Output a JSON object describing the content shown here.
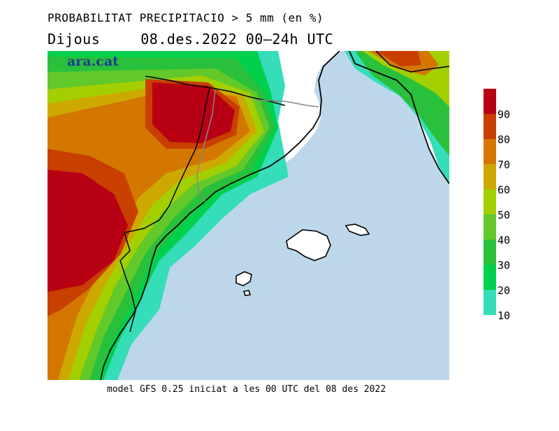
{
  "header": {
    "title": "PROBABILITAT PRECIPITACIO > 5 mm (en %)",
    "day": "Dijous",
    "date_range": "08.des.2022 00–24h UTC"
  },
  "map": {
    "logo": "ara.cat",
    "sea_color": "#bcd7ea",
    "land_color": "#ffffff"
  },
  "legend": {
    "colors": [
      "#b70014",
      "#c83f00",
      "#d37700",
      "#cda900",
      "#a3cf00",
      "#63c82a",
      "#29c03b",
      "#00d04c",
      "#35ddb8"
    ],
    "labels": [
      "90",
      "80",
      "70",
      "60",
      "50",
      "40",
      "30",
      "20",
      "10"
    ]
  },
  "footer": {
    "text": "model GFS 0.25 iniciat a les 00 UTC del 08 des 2022"
  }
}
